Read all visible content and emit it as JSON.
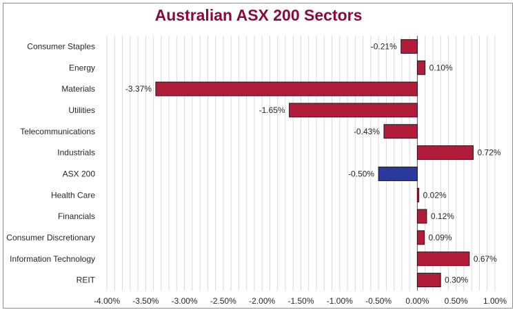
{
  "colors": {
    "title": "#8b0a3a",
    "bar": "#b01c3a",
    "highlight_bar": "#2a3a9c",
    "bar_outline": "#1a1a1a",
    "grid": "#d9d9d9"
  },
  "chart_data": {
    "type": "bar",
    "orientation": "horizontal",
    "title": "Australian ASX 200 Sectors",
    "xlabel": "",
    "ylabel": "",
    "xlim": [
      -4.0,
      1.0
    ],
    "x_tick_step": 0.5,
    "x_ticks": [
      "-4.00%",
      "-3.50%",
      "-3.00%",
      "-2.50%",
      "-2.00%",
      "-1.50%",
      "-1.00%",
      "-0.50%",
      "0.00%",
      "0.50%",
      "1.00%"
    ],
    "grid": true,
    "legend": "none",
    "highlight": "ASX 200",
    "categories": [
      "Consumer Staples",
      "Energy",
      "Materials",
      "Utilities",
      "Telecommunications",
      "Industrials",
      "ASX 200",
      "Health Care",
      "Financials",
      "Consumer Discretionary",
      "Information Technology",
      "REIT"
    ],
    "values": [
      -0.21,
      0.1,
      -3.37,
      -1.65,
      -0.43,
      0.72,
      -0.5,
      0.02,
      0.12,
      0.09,
      0.67,
      0.3
    ],
    "labels": [
      "-0.21%",
      "0.10%",
      "-3.37%",
      "-1.65%",
      "-0.43%",
      "0.72%",
      "-0.50%",
      "0.02%",
      "0.12%",
      "0.09%",
      "0.67%",
      "0.30%"
    ]
  }
}
